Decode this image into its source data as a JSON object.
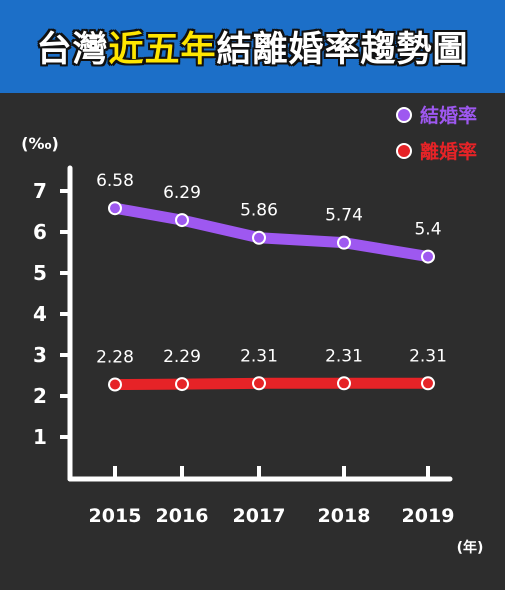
{
  "title": {
    "prefix": "台灣",
    "highlight": "近五年",
    "suffix": "結離婚率趨勢圖"
  },
  "colors": {
    "background": "#2d2d2d",
    "title_bar": "#1c6fc8",
    "title_highlight": "#ffe600",
    "axis": "#ffffff",
    "marriage": "#9e58f0",
    "divorce": "#e62327"
  },
  "chart_data": {
    "type": "line",
    "ylabel": "(‰)",
    "xlabel": "(年)",
    "x": [
      "2015",
      "2016",
      "2017",
      "2018",
      "2019"
    ],
    "ylim": [
      0,
      7
    ],
    "yticks": [
      1,
      2,
      3,
      4,
      5,
      6,
      7
    ],
    "grid": false,
    "legend": "top-right",
    "series": [
      {
        "name": "結婚率",
        "color": "#9e58f0",
        "values": [
          6.58,
          6.29,
          5.86,
          5.74,
          5.4
        ],
        "labels": [
          "6.58",
          "6.29",
          "5.86",
          "5.74",
          "5.4"
        ]
      },
      {
        "name": "離婚率",
        "color": "#e62327",
        "values": [
          2.28,
          2.29,
          2.31,
          2.31,
          2.31
        ],
        "labels": [
          "2.28",
          "2.29",
          "2.31",
          "2.31",
          "2.31"
        ]
      }
    ]
  }
}
